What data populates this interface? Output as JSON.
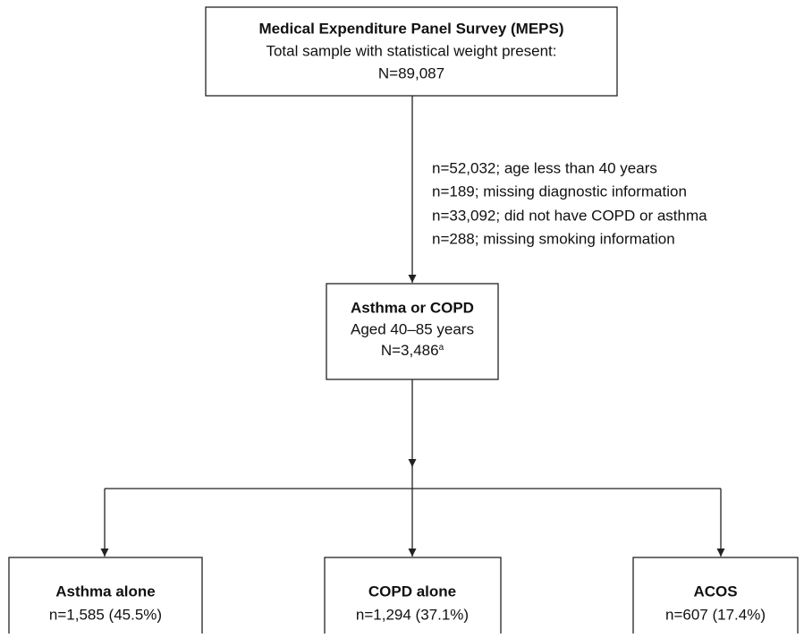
{
  "nodes": [
    {
      "title": "Medical Expenditure Panel Survey (MEPS)",
      "lines": [
        "Total sample with statistical weight present:",
        "N=89,087"
      ]
    },
    {
      "title": "Asthma or COPD",
      "lines": [
        "Aged 40–85 years",
        "N=3,486"
      ],
      "footnote_marker": "a"
    },
    {
      "title": "Asthma alone",
      "lines": [
        "n=1,585 (45.5%)"
      ]
    },
    {
      "title": "COPD alone",
      "lines": [
        "n=1,294 (37.1%)"
      ]
    },
    {
      "title": "ACOS",
      "lines": [
        "n=607 (17.4%)"
      ]
    }
  ],
  "exclusions": [
    "n=52,032; age less than 40 years",
    "n=189; missing diagnostic information",
    "n=33,092; did not have COPD or asthma",
    "n=288; missing smoking information"
  ]
}
